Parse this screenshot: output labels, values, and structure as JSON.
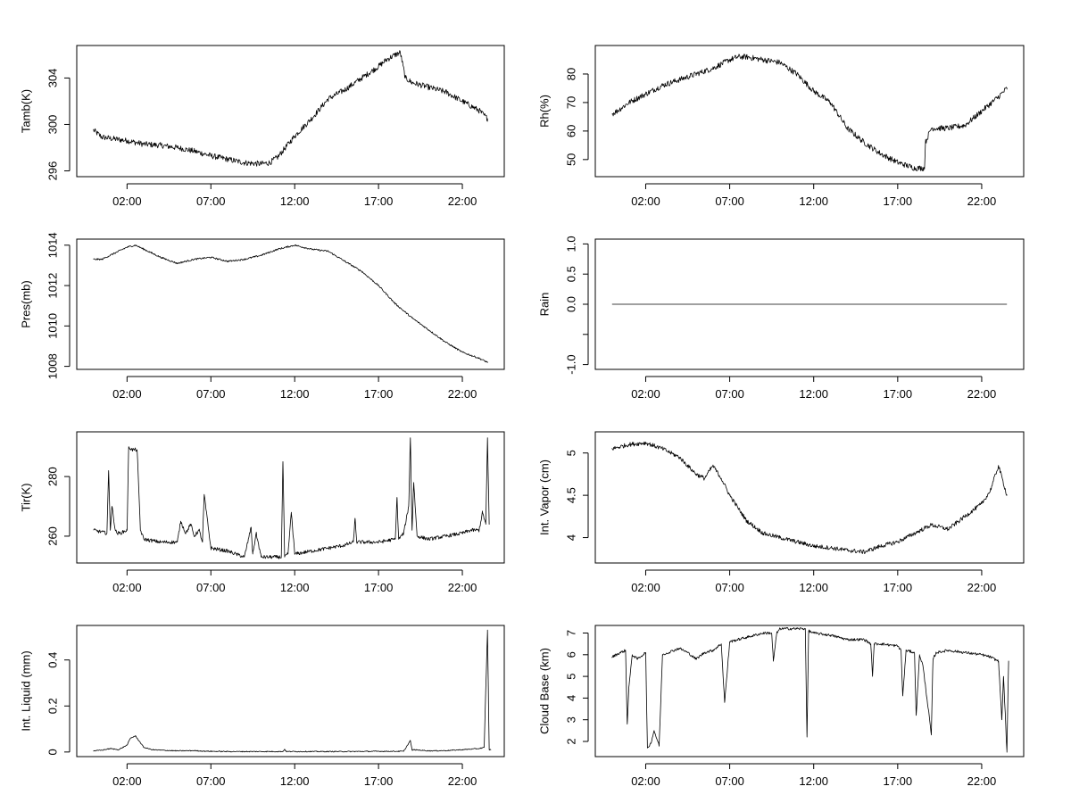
{
  "chart_data": [
    {
      "type": "line",
      "ylabel": "Tamb(K)",
      "xticks": [
        "02:00",
        "07:00",
        "12:00",
        "17:00",
        "22:00"
      ],
      "yticks": [
        296,
        300,
        304
      ],
      "xlim": [
        -1.0,
        24.5
      ],
      "ylim": [
        295.5,
        306.8
      ],
      "noise": 0.25,
      "x": [
        0,
        0.5,
        1,
        2,
        3,
        4,
        5,
        6,
        7,
        8,
        9,
        10,
        10.5,
        11,
        12,
        13,
        14,
        15,
        16,
        17,
        17.5,
        18,
        18.3,
        18.6,
        19,
        20,
        21,
        22,
        23,
        23.5
      ],
      "y": [
        299.5,
        298.9,
        298.8,
        298.6,
        298.3,
        298.2,
        298.0,
        297.7,
        297.3,
        297.0,
        296.7,
        296.6,
        296.7,
        297.2,
        299.0,
        300.5,
        302.2,
        303.0,
        304.0,
        305.0,
        305.6,
        306.0,
        306.2,
        304.0,
        303.6,
        303.2,
        302.8,
        302.0,
        301.2,
        300.5
      ]
    },
    {
      "type": "line",
      "ylabel": "Rh(%)",
      "xticks": [
        "02:00",
        "07:00",
        "12:00",
        "17:00",
        "22:00"
      ],
      "yticks": [
        50,
        60,
        70,
        80
      ],
      "xlim": [
        -1.0,
        24.5
      ],
      "ylim": [
        44,
        90
      ],
      "noise": 1.0,
      "x": [
        0,
        0.3,
        1,
        2,
        3,
        4,
        5,
        6,
        7,
        7.5,
        8,
        9,
        10,
        11,
        12,
        13,
        14,
        15,
        16,
        17,
        18,
        18.6,
        18.65,
        19,
        20,
        21,
        22,
        23,
        23.5
      ],
      "y": [
        66,
        67,
        70,
        73,
        76,
        78,
        80,
        82,
        85,
        86,
        86,
        85,
        84,
        80,
        74,
        70,
        61,
        56,
        52,
        49,
        47,
        47,
        56,
        61,
        61,
        62,
        67,
        72,
        75
      ]
    },
    {
      "type": "line",
      "ylabel": "Pres(mb)",
      "xticks": [
        "02:00",
        "07:00",
        "12:00",
        "17:00",
        "22:00"
      ],
      "yticks": [
        1008,
        1010,
        1012,
        1014
      ],
      "xlim": [
        -1.0,
        24.5
      ],
      "ylim": [
        1007.85,
        1014.3
      ],
      "noise": 0.04,
      "x": [
        0,
        0.5,
        1,
        2,
        2.5,
        3,
        4,
        5,
        6,
        7,
        8,
        9,
        10,
        11,
        12,
        13,
        14,
        15,
        16,
        17,
        18,
        19,
        20,
        21,
        22,
        23,
        23.5
      ],
      "y": [
        1013.3,
        1013.3,
        1013.5,
        1013.9,
        1014.0,
        1013.8,
        1013.4,
        1013.1,
        1013.3,
        1013.4,
        1013.2,
        1013.3,
        1013.5,
        1013.8,
        1014.0,
        1013.8,
        1013.7,
        1013.2,
        1012.7,
        1012.0,
        1011.1,
        1010.4,
        1009.8,
        1009.2,
        1008.7,
        1008.4,
        1008.2
      ]
    },
    {
      "type": "line",
      "ylabel": "Rain",
      "xticks": [
        "02:00",
        "07:00",
        "12:00",
        "17:00",
        "22:00"
      ],
      "yticks": [
        -1.0,
        -0.5,
        0.0,
        0.5,
        1.0
      ],
      "yticklabels": [
        "-1.0",
        "",
        "0.0",
        "0.5",
        "1.0"
      ],
      "xlim": [
        -1.0,
        24.5
      ],
      "ylim": [
        -1.08,
        1.08
      ],
      "noise": 0,
      "x": [
        0,
        23.5
      ],
      "y": [
        0,
        0
      ]
    },
    {
      "type": "line",
      "ylabel": "Tir(K)",
      "xticks": [
        "02:00",
        "07:00",
        "12:00",
        "17:00",
        "22:00"
      ],
      "yticks": [
        260,
        280
      ],
      "xlim": [
        -1.0,
        24.5
      ],
      "ylim": [
        251,
        295
      ],
      "noise": 0.6,
      "x": [
        0,
        0.8,
        0.9,
        1.0,
        1.1,
        1.3,
        1.4,
        1.6,
        2.0,
        2.1,
        2.3,
        2.6,
        2.8,
        3.0,
        4.0,
        5.0,
        5.2,
        5.5,
        5.8,
        6.0,
        6.3,
        6.5,
        6.6,
        7.0,
        8.0,
        9.0,
        9.4,
        9.5,
        9.7,
        10.0,
        11.0,
        11.2,
        11.3,
        11.4,
        11.6,
        11.8,
        12.0,
        13.0,
        14.0,
        15.0,
        15.5,
        15.6,
        15.7,
        17.0,
        18.0,
        18.1,
        18.2,
        18.5,
        18.8,
        18.9,
        19.0,
        19.1,
        19.3,
        20.0,
        21.0,
        22.0,
        22.5,
        23.0,
        23.2,
        23.4,
        23.5,
        23.6
      ],
      "y": [
        262,
        261,
        282,
        262,
        270,
        262,
        261,
        261,
        262,
        290,
        289,
        289,
        262,
        259,
        258,
        258,
        265,
        261,
        264,
        260,
        262,
        258,
        274,
        256,
        255,
        253,
        263,
        254,
        261,
        253,
        253,
        253,
        285,
        253,
        254,
        268,
        254,
        255,
        256,
        257,
        258,
        266,
        258,
        258,
        259,
        273,
        259,
        261,
        270,
        293,
        262,
        278,
        260,
        259,
        260,
        261,
        262,
        262,
        268,
        264,
        293,
        264
      ]
    },
    {
      "type": "line",
      "ylabel": "Int. Vapor (cm)",
      "xticks": [
        "02:00",
        "07:00",
        "12:00",
        "17:00",
        "22:00"
      ],
      "yticks": [
        4.0,
        4.5,
        5.0
      ],
      "xlim": [
        -1.0,
        24.5
      ],
      "ylim": [
        3.7,
        5.25
      ],
      "noise": 0.025,
      "x": [
        0,
        1,
        2,
        3,
        4,
        5,
        5.5,
        6,
        6.5,
        7,
        8,
        9,
        10,
        11,
        12,
        13,
        14,
        15,
        16,
        17,
        18,
        19,
        20,
        21,
        22,
        22.5,
        23,
        23.5
      ],
      "y": [
        5.05,
        5.1,
        5.12,
        5.05,
        4.95,
        4.75,
        4.7,
        4.85,
        4.7,
        4.5,
        4.2,
        4.05,
        4.0,
        3.95,
        3.9,
        3.88,
        3.85,
        3.83,
        3.9,
        3.95,
        4.05,
        4.15,
        4.1,
        4.25,
        4.4,
        4.55,
        4.85,
        4.5
      ]
    },
    {
      "type": "line",
      "ylabel": "Int. Liquid (mm)",
      "xticks": [
        "02:00",
        "07:00",
        "12:00",
        "17:00",
        "22:00"
      ],
      "yticks": [
        0.0,
        0.2,
        0.4
      ],
      "xlim": [
        -1.0,
        24.5
      ],
      "ylim": [
        -0.02,
        0.55
      ],
      "noise": 0.002,
      "x": [
        0,
        0.5,
        1.0,
        1.5,
        2.0,
        2.2,
        2.5,
        2.7,
        3.0,
        3.5,
        4,
        5,
        6,
        6.5,
        7,
        8,
        10,
        11.3,
        11.4,
        11.5,
        13,
        15,
        17,
        18.5,
        18.9,
        19.0,
        19.1,
        20,
        21,
        22,
        23,
        23.3,
        23.5,
        23.55,
        23.6,
        23.7
      ],
      "y": [
        0.005,
        0.008,
        0.015,
        0.01,
        0.03,
        0.06,
        0.07,
        0.05,
        0.02,
        0.01,
        0.008,
        0.005,
        0.006,
        0.004,
        0.003,
        0.002,
        0.002,
        0.002,
        0.012,
        0.002,
        0.002,
        0.002,
        0.003,
        0.003,
        0.05,
        0.008,
        0.01,
        0.005,
        0.006,
        0.01,
        0.015,
        0.02,
        0.53,
        0.27,
        0.01,
        0.01
      ]
    },
    {
      "type": "line",
      "ylabel": "Cloud Base (km)",
      "xticks": [
        "02:00",
        "07:00",
        "12:00",
        "17:00",
        "22:00"
      ],
      "yticks": [
        2,
        3,
        4,
        5,
        6,
        7
      ],
      "xlim": [
        -1.0,
        24.5
      ],
      "ylim": [
        1.3,
        7.35
      ],
      "noise": 0.06,
      "x": [
        0,
        0.5,
        0.8,
        0.9,
        1.0,
        1.2,
        1.5,
        2.0,
        2.1,
        2.3,
        2.5,
        2.8,
        3.0,
        4.0,
        4.5,
        5.0,
        5.5,
        6.0,
        6.5,
        6.7,
        7.0,
        8.0,
        9.0,
        9.5,
        9.6,
        9.8,
        10.0,
        11.0,
        11.5,
        11.6,
        11.7,
        12.0,
        13.0,
        14.0,
        15.0,
        15.4,
        15.5,
        15.6,
        16.0,
        17.0,
        17.2,
        17.3,
        17.5,
        18.0,
        18.1,
        18.3,
        18.5,
        18.9,
        19.0,
        19.1,
        19.3,
        20.0,
        21.0,
        22.0,
        22.5,
        23.0,
        23.2,
        23.3,
        23.5,
        23.6
      ],
      "y": [
        5.9,
        6.1,
        6.2,
        2.8,
        4.5,
        6.0,
        5.8,
        6.1,
        1.7,
        1.9,
        2.5,
        1.8,
        6.0,
        6.3,
        6.1,
        5.8,
        6.1,
        6.2,
        6.5,
        3.8,
        6.6,
        6.8,
        7.0,
        7.0,
        5.7,
        7.0,
        7.2,
        7.2,
        7.2,
        2.2,
        7.1,
        7.0,
        6.9,
        6.7,
        6.7,
        6.5,
        5.0,
        6.5,
        6.5,
        6.4,
        6.2,
        4.1,
        6.2,
        6.1,
        3.2,
        6.0,
        5.5,
        3.0,
        2.3,
        5.8,
        6.1,
        6.2,
        6.1,
        6.0,
        5.9,
        5.7,
        3.0,
        5.0,
        1.5,
        5.7
      ]
    }
  ]
}
